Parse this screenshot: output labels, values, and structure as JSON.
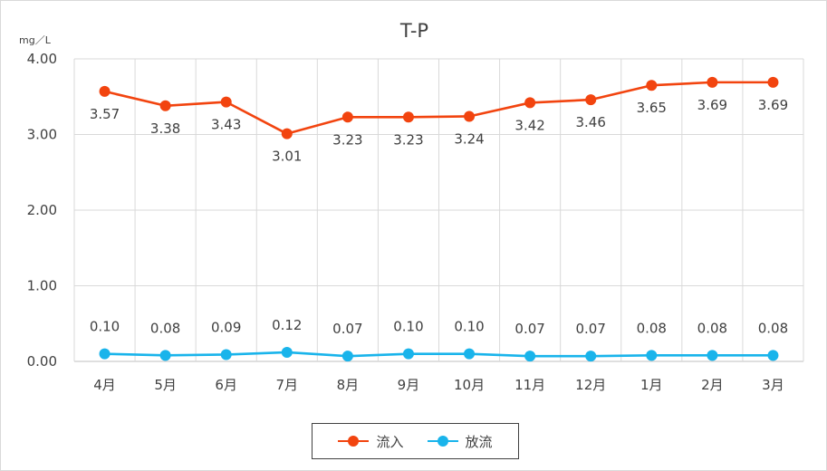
{
  "chart_data": {
    "type": "line",
    "title": "T-P",
    "unit_label": "mg／L",
    "categories": [
      "4月",
      "5月",
      "6月",
      "7月",
      "8月",
      "9月",
      "10月",
      "11月",
      "12月",
      "1月",
      "2月",
      "3月"
    ],
    "ylim": [
      0,
      4
    ],
    "yticks": [
      "0.00",
      "1.00",
      "2.00",
      "3.00",
      "4.00"
    ],
    "grid": true,
    "legend_position": "bottom",
    "series": [
      {
        "name": "流入",
        "color": "#f2440f",
        "values": [
          3.57,
          3.38,
          3.43,
          3.01,
          3.23,
          3.23,
          3.24,
          3.42,
          3.46,
          3.65,
          3.69,
          3.69
        ],
        "labels": [
          "3.57",
          "3.38",
          "3.43",
          "3.01",
          "3.23",
          "3.23",
          "3.24",
          "3.42",
          "3.46",
          "3.65",
          "3.69",
          "3.69"
        ]
      },
      {
        "name": "放流",
        "color": "#19b4eb",
        "values": [
          0.1,
          0.08,
          0.09,
          0.12,
          0.07,
          0.1,
          0.1,
          0.07,
          0.07,
          0.08,
          0.08,
          0.08
        ],
        "labels": [
          "0.10",
          "0.08",
          "0.09",
          "0.12",
          "0.07",
          "0.10",
          "0.10",
          "0.07",
          "0.07",
          "0.08",
          "0.08",
          "0.08"
        ]
      }
    ]
  }
}
